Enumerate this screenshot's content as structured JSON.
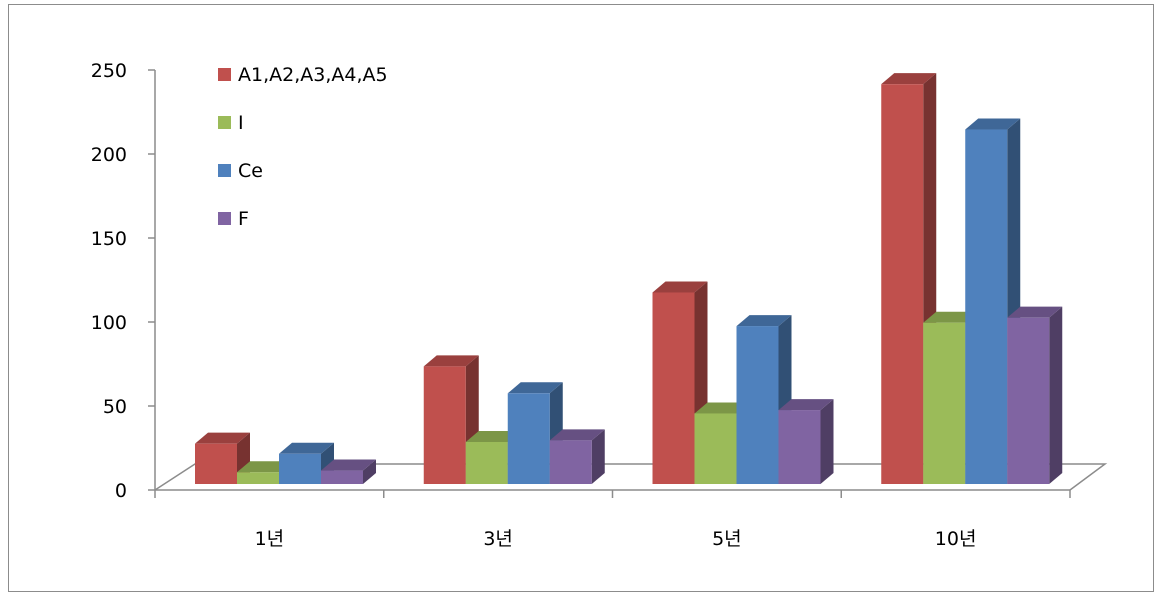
{
  "chart_data": {
    "type": "bar",
    "style": "3d-clustered-column",
    "categories": [
      "1년",
      "3년",
      "5년",
      "10년"
    ],
    "series": [
      {
        "name": "A1,A2,A3,A4,A5",
        "color": "#c0504d",
        "values": [
          24,
          70,
          114,
          238
        ]
      },
      {
        "name": "I",
        "color": "#9bbb59",
        "values": [
          7,
          25,
          42,
          96
        ]
      },
      {
        "name": "Ce",
        "color": "#4f81bd",
        "values": [
          18,
          54,
          94,
          211
        ]
      },
      {
        "name": "F",
        "color": "#8064a2",
        "values": [
          8,
          26,
          44,
          99
        ]
      }
    ],
    "yticks": [
      0,
      50,
      100,
      150,
      200,
      250
    ],
    "ylim": [
      0,
      250
    ],
    "legend": "top-left",
    "grid": false
  }
}
